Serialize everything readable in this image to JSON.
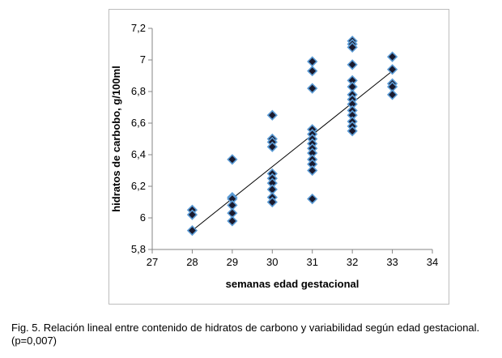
{
  "chart_data": {
    "type": "scatter",
    "xlabel": "semanas edad gestacional",
    "ylabel": "hidratos de carbobo, g/100ml",
    "xlim": [
      27,
      34
    ],
    "ylim": [
      5.8,
      7.2
    ],
    "xticks": [
      "27",
      "28",
      "29",
      "30",
      "31",
      "32",
      "33",
      "34"
    ],
    "yticks": [
      "5,8",
      "6",
      "6,2",
      "6,4",
      "6,6",
      "6,8",
      "7",
      "7,2"
    ],
    "grid": false,
    "legend": "none",
    "marker_color": "#1a1a2e",
    "marker_edge_color": "#5b9bd5",
    "trendline_color": "#000000",
    "trendline": {
      "x": [
        28,
        33
      ],
      "y": [
        5.92,
        6.93
      ]
    },
    "points": [
      {
        "x": 28,
        "y": 6.05
      },
      {
        "x": 28,
        "y": 6.02
      },
      {
        "x": 28,
        "y": 5.92
      },
      {
        "x": 29,
        "y": 6.37
      },
      {
        "x": 29,
        "y": 6.13
      },
      {
        "x": 29,
        "y": 6.12
      },
      {
        "x": 29,
        "y": 6.08
      },
      {
        "x": 29,
        "y": 6.03
      },
      {
        "x": 29,
        "y": 5.98
      },
      {
        "x": 30,
        "y": 6.65
      },
      {
        "x": 30,
        "y": 6.5
      },
      {
        "x": 30,
        "y": 6.48
      },
      {
        "x": 30,
        "y": 6.45
      },
      {
        "x": 30,
        "y": 6.28
      },
      {
        "x": 30,
        "y": 6.25
      },
      {
        "x": 30,
        "y": 6.22
      },
      {
        "x": 30,
        "y": 6.18
      },
      {
        "x": 30,
        "y": 6.13
      },
      {
        "x": 30,
        "y": 6.1
      },
      {
        "x": 31,
        "y": 6.99
      },
      {
        "x": 31,
        "y": 6.93
      },
      {
        "x": 31,
        "y": 6.82
      },
      {
        "x": 31,
        "y": 6.56
      },
      {
        "x": 31,
        "y": 6.53
      },
      {
        "x": 31,
        "y": 6.5
      },
      {
        "x": 31,
        "y": 6.47
      },
      {
        "x": 31,
        "y": 6.44
      },
      {
        "x": 31,
        "y": 6.41
      },
      {
        "x": 31,
        "y": 6.37
      },
      {
        "x": 31,
        "y": 6.34
      },
      {
        "x": 31,
        "y": 6.3
      },
      {
        "x": 31,
        "y": 6.12
      },
      {
        "x": 32,
        "y": 7.12
      },
      {
        "x": 32,
        "y": 7.1
      },
      {
        "x": 32,
        "y": 7.08
      },
      {
        "x": 32,
        "y": 6.97
      },
      {
        "x": 32,
        "y": 6.87
      },
      {
        "x": 32,
        "y": 6.83
      },
      {
        "x": 32,
        "y": 6.78
      },
      {
        "x": 32,
        "y": 6.75
      },
      {
        "x": 32,
        "y": 6.72
      },
      {
        "x": 32,
        "y": 6.68
      },
      {
        "x": 32,
        "y": 6.65
      },
      {
        "x": 32,
        "y": 6.61
      },
      {
        "x": 32,
        "y": 6.58
      },
      {
        "x": 32,
        "y": 6.55
      },
      {
        "x": 33,
        "y": 7.02
      },
      {
        "x": 33,
        "y": 6.94
      },
      {
        "x": 33,
        "y": 6.85
      },
      {
        "x": 33,
        "y": 6.83
      },
      {
        "x": 33,
        "y": 6.78
      }
    ]
  },
  "caption": "Fig. 5. Relación lineal entre contenido de hidratos de carbono y variabilidad según edad gestacional. (p=0,007)"
}
